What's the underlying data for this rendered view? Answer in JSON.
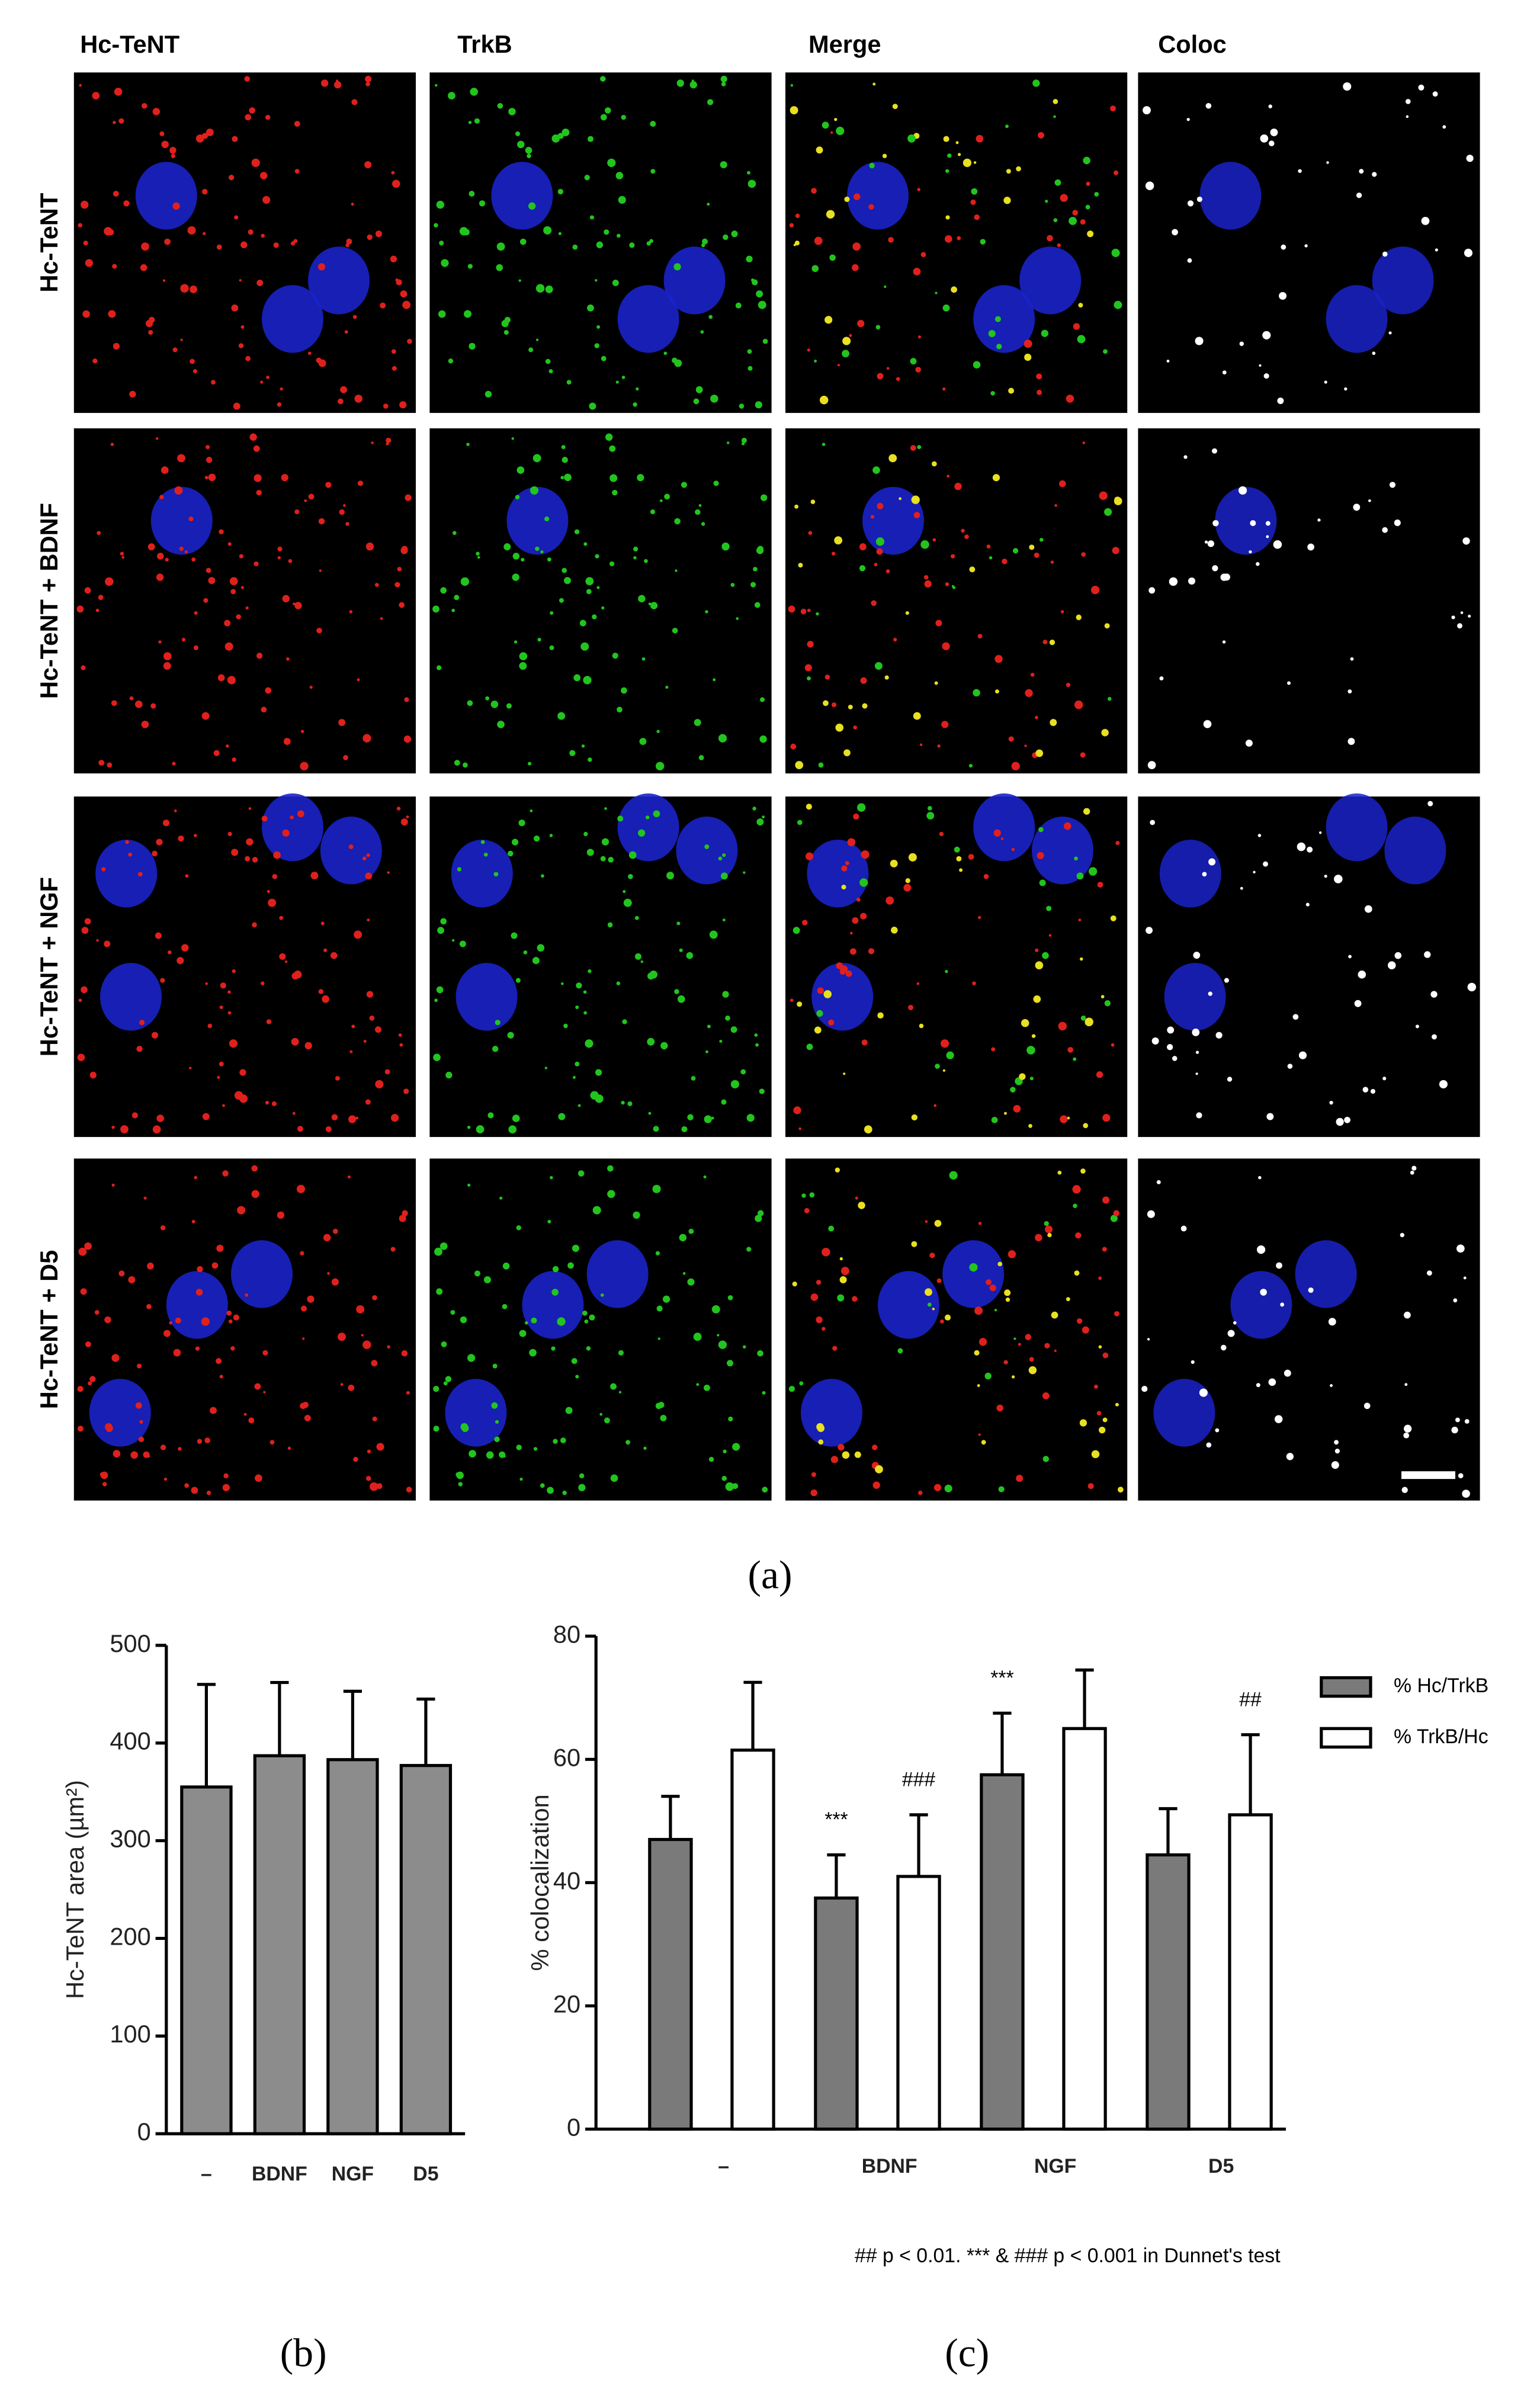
{
  "figure_a": {
    "column_labels": [
      "Hc-TeNT",
      "TrkB",
      "Merge",
      "Coloc"
    ],
    "row_labels": [
      "Hc-TeNT",
      "Hc-TeNT + BDNF",
      "Hc-TeNT + NGF",
      "Hc-TeNT + D5"
    ],
    "caption": "(a)"
  },
  "chart_data": [
    {
      "type": "bar",
      "caption": "(b)",
      "y_label": "Hc-TeNT area (µm²)",
      "categories": [
        "–",
        "BDNF",
        "NGF",
        "D5"
      ],
      "values": [
        355,
        387,
        383,
        377
      ],
      "errors": [
        105,
        75,
        70,
        68
      ],
      "color": "#8c8c8c",
      "ylim": [
        0,
        500
      ],
      "yticks": [
        0,
        100,
        200,
        300,
        400,
        500
      ]
    },
    {
      "type": "grouped_bar",
      "caption": "(c)",
      "y_label": "% colocalization",
      "categories": [
        "–",
        "BDNF",
        "NGF",
        "D5"
      ],
      "series": [
        {
          "name": "% Hc/TrkB",
          "color": "#7a7a7a",
          "values": [
            47,
            37.5,
            57.5,
            44.5
          ],
          "errors": [
            7,
            7,
            10,
            7.5
          ],
          "significance": [
            null,
            "***",
            "***",
            null
          ]
        },
        {
          "name": "% TrkB/Hc",
          "color": "#ffffff",
          "values": [
            61.5,
            41,
            65,
            51
          ],
          "errors": [
            11,
            10,
            9.5,
            13
          ],
          "significance": [
            null,
            "###",
            null,
            "##"
          ]
        }
      ],
      "ylim": [
        0,
        80
      ],
      "yticks": [
        0,
        20,
        40,
        60,
        80
      ],
      "footnote": "## p < 0.01. *** & ### p < 0.001 in Dunnet's test"
    }
  ]
}
